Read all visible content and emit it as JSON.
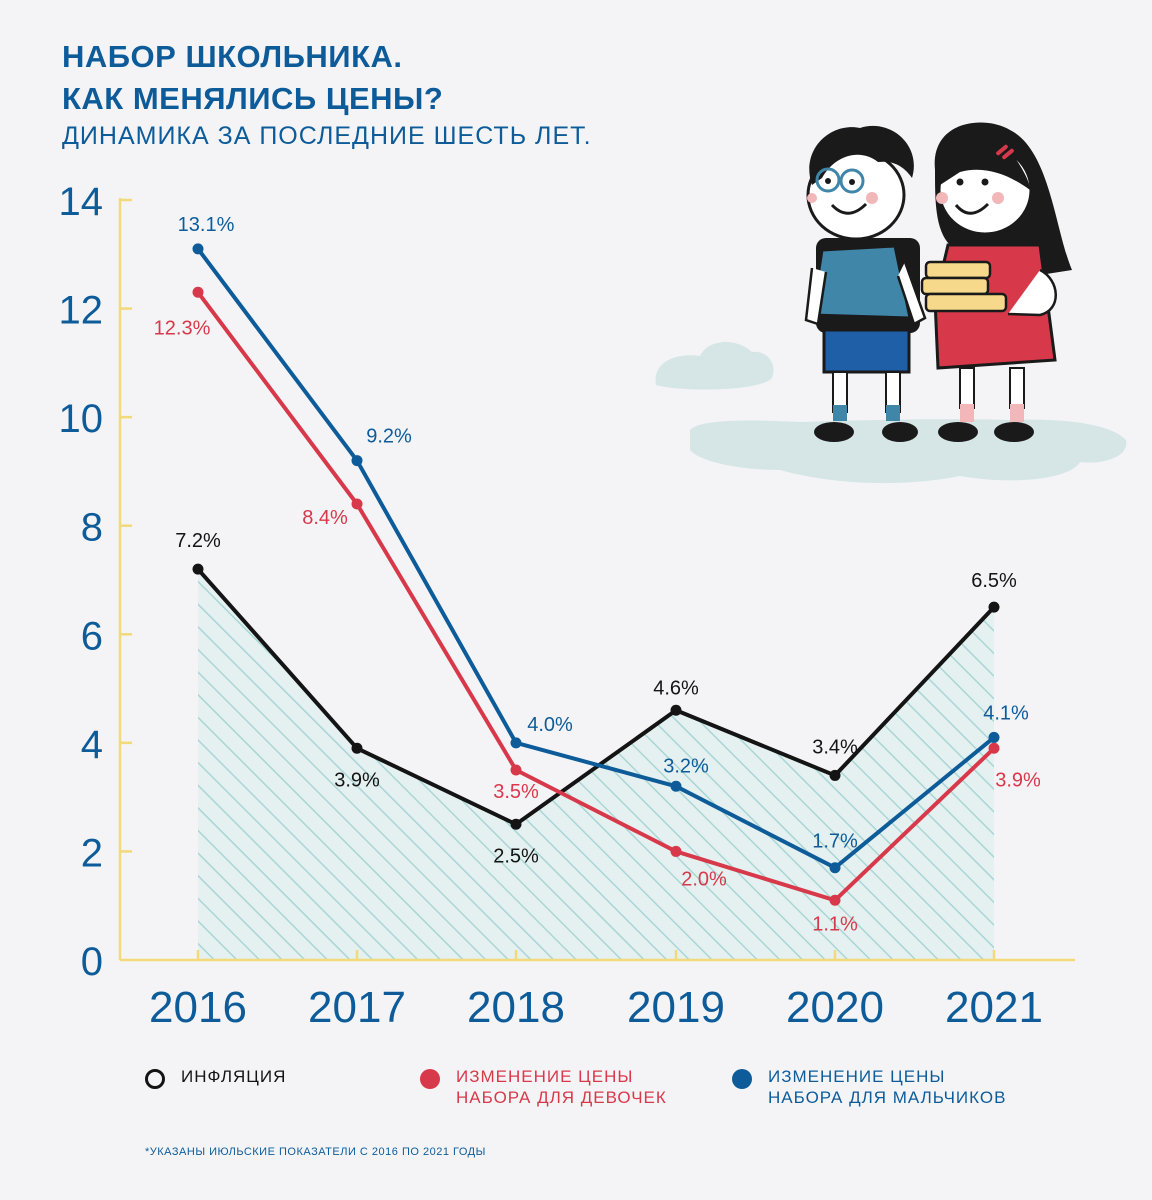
{
  "header": {
    "title_line1": "НАБОР ШКОЛЬНИКА.",
    "title_line2": "КАК МЕНЯЛИСЬ ЦЕНЫ?",
    "subtitle": "ДИНАМИКА ЗА ПОСЛЕДНИЕ ШЕСТЬ ЛЕТ."
  },
  "legend": {
    "inflation": "ИНФЛЯЦИЯ",
    "girls": "ИЗМЕНЕНИЕ ЦЕНЫ\nНАБОРА ДЛЯ ДЕВОЧЕК",
    "boys": "ИЗМЕНЕНИЕ ЦЕНЫ\nНАБОРА ДЛЯ МАЛЬЧИКОВ"
  },
  "footnote": "*УКАЗАНЫ ИЮЛЬСКИЕ ПОКАЗАТЕЛИ С 2016 ПО 2021 ГОДЫ",
  "colors": {
    "inflation": "#141414",
    "girls": "#d8394a",
    "boys": "#0d5c99",
    "axis": "#f2d97a",
    "hatch": "#a9d6d5",
    "text_blue": "#0d5c99"
  },
  "chart_data": {
    "type": "line",
    "title": "НАБОР ШКОЛЬНИКА. КАК МЕНЯЛИСЬ ЦЕНЫ?",
    "subtitle": "ДИНАМИКА ЗА ПОСЛЕДНИЕ ШЕСТЬ ЛЕТ.",
    "xlabel": "",
    "ylabel": "",
    "categories": [
      "2016",
      "2017",
      "2018",
      "2019",
      "2020",
      "2021"
    ],
    "yticks": [
      0,
      2,
      4,
      6,
      8,
      10,
      12,
      14
    ],
    "ylim": [
      0,
      14
    ],
    "grid": false,
    "legend_position": "bottom",
    "series": [
      {
        "name": "ИНФЛЯЦИЯ",
        "color": "#141414",
        "values": [
          7.2,
          3.9,
          2.5,
          4.6,
          3.4,
          6.5
        ],
        "labels": [
          "7.2%",
          "3.9%",
          "2.5%",
          "4.6%",
          "3.4%",
          "6.5%"
        ],
        "area_hatched": true
      },
      {
        "name": "ИЗМЕНЕНИЕ ЦЕНЫ НАБОРА ДЛЯ ДЕВОЧЕК",
        "color": "#d8394a",
        "values": [
          12.3,
          8.4,
          3.5,
          2.0,
          1.1,
          3.9
        ],
        "labels": [
          "12.3%",
          "8.4%",
          "3.5%",
          "2.0%",
          "1.1%",
          "3.9%"
        ]
      },
      {
        "name": "ИЗМЕНЕНИЕ ЦЕНЫ НАБОРА ДЛЯ МАЛЬЧИКОВ",
        "color": "#0d5c99",
        "values": [
          13.1,
          9.2,
          4.0,
          3.2,
          1.7,
          4.1
        ],
        "labels": [
          "13.1%",
          "9.2%",
          "4.0%",
          "3.2%",
          "1.7%",
          "4.1%"
        ]
      }
    ],
    "footnote": "*УКАЗАНЫ ИЮЛЬСКИЕ ПОКАЗАТЕЛИ С 2016 ПО 2021 ГОДЫ"
  },
  "illustration": {
    "boy_icon": "boy-with-glasses-and-backpack-icon",
    "girl_icon": "girl-holding-books-icon",
    "cloud_icon": "cloud-shape-icon"
  }
}
